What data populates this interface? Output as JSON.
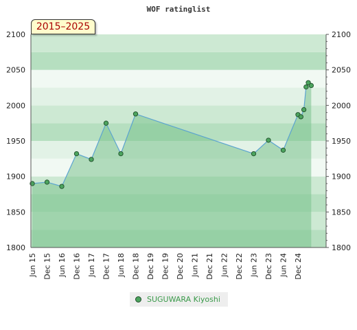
{
  "chart_data": {
    "type": "line",
    "title": "WOF ratinglist",
    "period_label": "2015–2025",
    "ylim": [
      1800,
      2100
    ],
    "yticks": [
      1800,
      1850,
      1900,
      1950,
      2000,
      2050,
      2100
    ],
    "xticks": [
      "Jun 15",
      "Dec 15",
      "Jun 16",
      "Dec 16",
      "Jun 17",
      "Dec 17",
      "Jun 18",
      "Dec 18",
      "Dec 19",
      "Dec 19",
      "Dec 20",
      "Jun 21",
      "Dec 21",
      "Jun 22",
      "Dec 22",
      "Jun 23",
      "Dec 23",
      "Jun 24",
      "Dec 24"
    ],
    "series": [
      {
        "name": "SUGUWARA Kiyoshi",
        "color": "#4ca45e",
        "points": [
          {
            "x": 0.0,
            "y": 1890
          },
          {
            "x": 1.0,
            "y": 1892
          },
          {
            "x": 2.0,
            "y": 1886
          },
          {
            "x": 3.0,
            "y": 1932
          },
          {
            "x": 4.0,
            "y": 1924
          },
          {
            "x": 5.0,
            "y": 1975
          },
          {
            "x": 6.0,
            "y": 1932
          },
          {
            "x": 7.0,
            "y": 1988
          },
          {
            "x": 15.0,
            "y": 1932
          },
          {
            "x": 16.0,
            "y": 1951
          },
          {
            "x": 17.0,
            "y": 1937
          },
          {
            "x": 18.0,
            "y": 1987
          },
          {
            "x": 18.2,
            "y": 1984
          },
          {
            "x": 18.4,
            "y": 1994
          },
          {
            "x": 18.55,
            "y": 2026
          },
          {
            "x": 18.7,
            "y": 2032
          },
          {
            "x": 18.9,
            "y": 2028
          }
        ]
      }
    ],
    "colors": {
      "line": "#5ba3d0",
      "area": "#7cc28e",
      "band_dark": "#b6dfc0",
      "band_mid": "#cde9d3",
      "band_light": "#e2f2e6",
      "band_lightest": "#f1f9f3"
    }
  }
}
